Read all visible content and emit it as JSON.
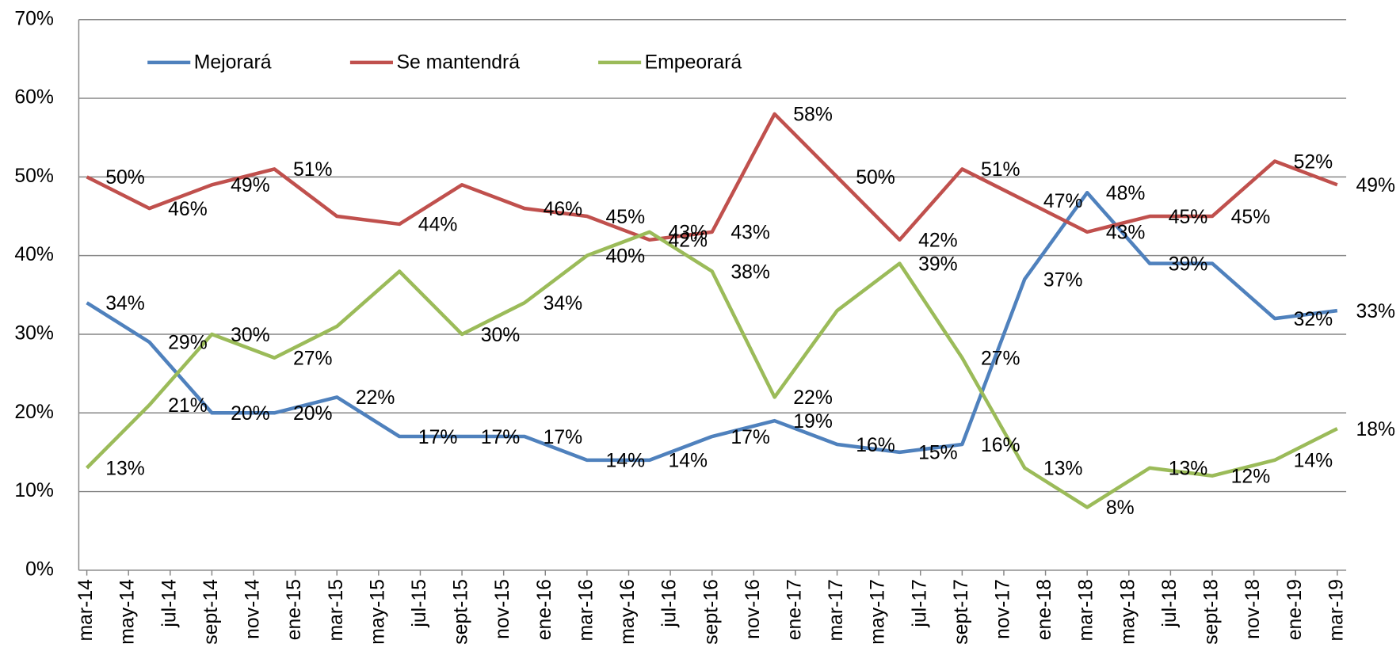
{
  "chart_data": {
    "type": "line",
    "x": [
      "2014-03",
      "2014-06",
      "2014-09",
      "2014-12",
      "2015-03",
      "2015-06",
      "2015-09",
      "2015-12",
      "2016-03",
      "2016-06",
      "2016-09",
      "2016-12",
      "2017-03",
      "2017-06",
      "2017-09",
      "2017-12",
      "2018-03",
      "2018-06",
      "2018-09",
      "2018-12",
      "2019-03"
    ],
    "series": [
      {
        "name": "Mejorará",
        "color": "#4f81bd",
        "values": [
          34,
          29,
          20,
          20,
          22,
          17,
          17,
          17,
          14,
          14,
          17,
          19,
          16,
          15,
          16,
          37,
          48,
          39,
          39,
          32,
          33
        ],
        "value_labels": [
          "34%",
          "29%",
          "20%",
          "20%",
          "22%",
          "17%",
          "17%",
          "17%",
          "14%",
          "14%",
          "17%",
          "19%",
          "16%",
          "15%",
          "16%",
          "37%",
          "48%",
          "39%",
          null,
          "32%",
          "33%"
        ]
      },
      {
        "name": "Se mantendrá",
        "color": "#c0504d",
        "values": [
          50,
          46,
          49,
          51,
          45,
          44,
          49,
          46,
          45,
          42,
          43,
          58,
          50,
          42,
          51,
          47,
          43,
          45,
          45,
          52,
          49
        ],
        "value_labels": [
          "50%",
          "46%",
          "49%",
          "51%",
          null,
          "44%",
          null,
          "46%",
          "45%",
          "42%",
          "43%",
          "58%",
          "50%",
          "42%",
          "51%",
          "47%",
          "43%",
          "45%",
          "45%",
          "52%",
          "49%"
        ]
      },
      {
        "name": "Empeorará",
        "color": "#9bbb59",
        "values": [
          13,
          21,
          30,
          27,
          31,
          38,
          30,
          34,
          40,
          43,
          38,
          22,
          33,
          39,
          27,
          13,
          8,
          13,
          12,
          14,
          18
        ],
        "value_labels": [
          "13%",
          "21%",
          "30%",
          "27%",
          null,
          null,
          "30%",
          "34%",
          "40%",
          "43%",
          "38%",
          "22%",
          null,
          "39%",
          "27%",
          "13%",
          "8%",
          "13%",
          "12%",
          "14%",
          "18%"
        ]
      }
    ],
    "xticks": [
      {
        "value": "2014-03",
        "label": "mar-14"
      },
      {
        "value": "2014-05",
        "label": "may-14"
      },
      {
        "value": "2014-07",
        "label": "jul-14"
      },
      {
        "value": "2014-09",
        "label": "sept-14"
      },
      {
        "value": "2014-11",
        "label": "nov-14"
      },
      {
        "value": "2015-01",
        "label": "ene-15"
      },
      {
        "value": "2015-03",
        "label": "mar-15"
      },
      {
        "value": "2015-05",
        "label": "may-15"
      },
      {
        "value": "2015-07",
        "label": "jul-15"
      },
      {
        "value": "2015-09",
        "label": "sept-15"
      },
      {
        "value": "2015-11",
        "label": "nov-15"
      },
      {
        "value": "2016-01",
        "label": "ene-16"
      },
      {
        "value": "2016-03",
        "label": "mar-16"
      },
      {
        "value": "2016-05",
        "label": "may-16"
      },
      {
        "value": "2016-07",
        "label": "jul-16"
      },
      {
        "value": "2016-09",
        "label": "sept-16"
      },
      {
        "value": "2016-11",
        "label": "nov-16"
      },
      {
        "value": "2017-01",
        "label": "ene-17"
      },
      {
        "value": "2017-03",
        "label": "mar-17"
      },
      {
        "value": "2017-05",
        "label": "may-17"
      },
      {
        "value": "2017-07",
        "label": "jul-17"
      },
      {
        "value": "2017-09",
        "label": "sept-17"
      },
      {
        "value": "2017-11",
        "label": "nov-17"
      },
      {
        "value": "2018-01",
        "label": "ene-18"
      },
      {
        "value": "2018-03",
        "label": "mar-18"
      },
      {
        "value": "2018-05",
        "label": "may-18"
      },
      {
        "value": "2018-07",
        "label": "jul-18"
      },
      {
        "value": "2018-09",
        "label": "sept-18"
      },
      {
        "value": "2018-11",
        "label": "nov-18"
      },
      {
        "value": "2019-01",
        "label": "ene-19"
      },
      {
        "value": "2019-03",
        "label": "mar-19"
      }
    ],
    "ylim": [
      0,
      70
    ],
    "yticks": [
      {
        "value": 0,
        "label": "0%"
      },
      {
        "value": 10,
        "label": "10%"
      },
      {
        "value": 20,
        "label": "20%"
      },
      {
        "value": 30,
        "label": "30%"
      },
      {
        "value": 40,
        "label": "40%"
      },
      {
        "value": 50,
        "label": "50%"
      },
      {
        "value": 60,
        "label": "60%"
      },
      {
        "value": 70,
        "label": "70%"
      }
    ],
    "grid": true,
    "legend": "top"
  }
}
